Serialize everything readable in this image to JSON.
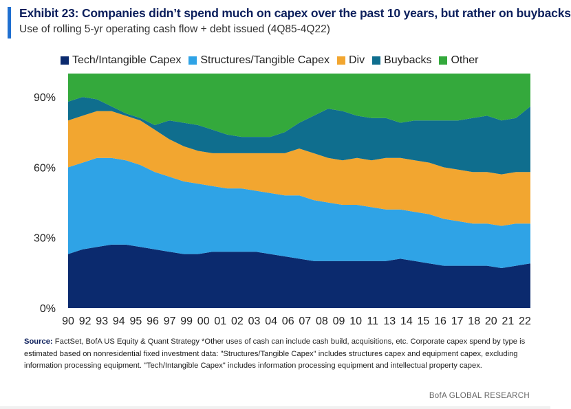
{
  "header": {
    "title": "Exhibit 23: Companies didn’t spend much on capex over the past 10 years, but rather on buybacks",
    "subtitle": "Use of rolling 5-yr operating cash flow + debt issued (4Q85-4Q22)"
  },
  "colors": {
    "accent": "#1f6fd0",
    "tech": "#0b2a6e",
    "structures": "#2fa3e6",
    "div": "#f2a630",
    "buybacks": "#0f6e8e",
    "other": "#34a93c"
  },
  "chart_data": {
    "type": "area",
    "stacked": true,
    "legend_position": "top",
    "grid": false,
    "x": [
      "90",
      "91",
      "92",
      "93",
      "94",
      "95",
      "96",
      "97",
      "98",
      "99",
      "00",
      "01",
      "02",
      "03",
      "04",
      "05",
      "06",
      "07",
      "08",
      "09",
      "10",
      "11",
      "12",
      "13",
      "14",
      "15",
      "16",
      "17",
      "18",
      "19",
      "20",
      "21",
      "22"
    ],
    "x_tick_labels": [
      "90",
      "92",
      "93",
      "94",
      "95",
      "96",
      "97",
      "99",
      "00",
      "01",
      "02",
      "03",
      "04",
      "06",
      "07",
      "08",
      "09",
      "10",
      "11",
      "13",
      "14",
      "15",
      "16",
      "17",
      "18",
      "20",
      "21",
      "22"
    ],
    "y_ticks": [
      "0%",
      "30%",
      "60%",
      "90%"
    ],
    "ylim": [
      0,
      100
    ],
    "series": [
      {
        "name": "Tech/Intangible Capex",
        "key": "tech",
        "values": [
          23,
          25,
          26,
          27,
          27,
          26,
          25,
          24,
          23,
          23,
          24,
          24,
          24,
          24,
          23,
          22,
          21,
          20,
          20,
          20,
          20,
          20,
          20,
          21,
          20,
          19,
          18,
          18,
          18,
          18,
          17,
          18,
          19
        ]
      },
      {
        "name": "Structures/Tangible Capex",
        "key": "structures",
        "values": [
          37,
          37,
          38,
          37,
          36,
          35,
          33,
          32,
          31,
          30,
          28,
          27,
          27,
          26,
          26,
          26,
          27,
          26,
          25,
          24,
          24,
          23,
          22,
          21,
          21,
          21,
          20,
          19,
          18,
          18,
          18,
          18,
          17
        ]
      },
      {
        "name": "Div",
        "key": "div",
        "values": [
          20,
          20,
          20,
          20,
          19,
          19,
          18,
          16,
          15,
          14,
          14,
          15,
          15,
          16,
          17,
          18,
          20,
          20,
          19,
          19,
          20,
          20,
          22,
          22,
          22,
          22,
          22,
          22,
          22,
          22,
          22,
          22,
          22
        ]
      },
      {
        "name": "Buybacks",
        "key": "buybacks",
        "values": [
          8,
          8,
          5,
          2,
          1,
          1,
          2,
          8,
          10,
          11,
          10,
          8,
          7,
          7,
          7,
          9,
          11,
          16,
          21,
          21,
          18,
          18,
          17,
          15,
          17,
          18,
          20,
          21,
          23,
          24,
          23,
          23,
          28
        ]
      },
      {
        "name": "Other",
        "key": "other",
        "values": [
          12,
          10,
          11,
          14,
          17,
          19,
          22,
          20,
          21,
          22,
          24,
          26,
          27,
          27,
          27,
          25,
          21,
          18,
          15,
          16,
          18,
          19,
          19,
          21,
          20,
          20,
          20,
          20,
          19,
          18,
          20,
          19,
          14
        ]
      }
    ]
  },
  "source": {
    "label": "Source:",
    "text": " FactSet, BofA US Equity & Quant Strategy *Other uses of cash can include cash build, acquisitions, etc. Corporate capex spend by type is estimated based on nonresidential fixed investment data: \"Structures/Tangible Capex\" includes structures capex and equipment capex, excluding information processing equipment. \"Tech/Intangible Capex\" includes information processing equipment and intellectual property capex."
  },
  "brand": "BofA GLOBAL RESEARCH"
}
